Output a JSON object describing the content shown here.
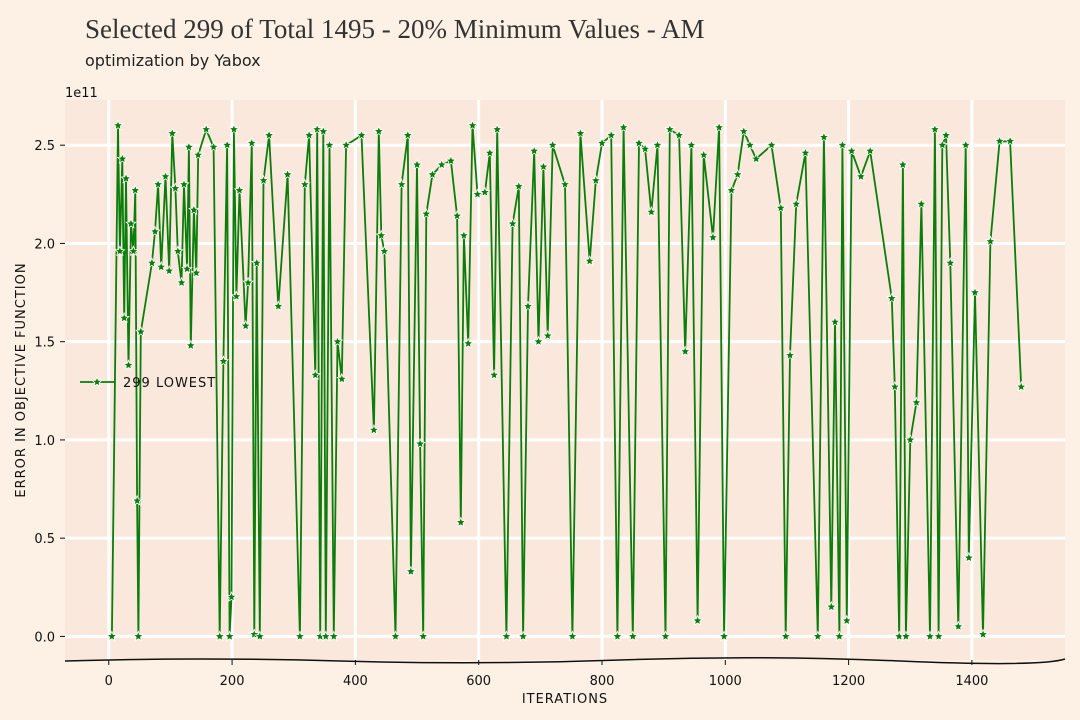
{
  "chart_data": {
    "type": "line",
    "title": "Selected 299 of Total 1495  - 20% Minimum Values - AM",
    "subtitle": "optimization by Yabox",
    "x_label": "ITERATIONS",
    "y_label": "ERROR IN OBJECTIVE FUNCTION",
    "y_offset_label": "1e11",
    "xlim": [
      -71,
      1551
    ],
    "ylim": [
      -0.12,
      2.73
    ],
    "xticks": [
      0,
      200,
      400,
      600,
      800,
      1000,
      1200,
      1400
    ],
    "yticks": [
      {
        "value": 0,
        "label": "0.0"
      },
      0.5,
      {
        "value": 1,
        "label": "1.0"
      },
      1.5,
      {
        "value": 2,
        "label": "2.0"
      },
      2.5
    ],
    "grid": true,
    "legend": "center left",
    "series": [
      {
        "name": "299 LOWEST",
        "color": "#0a7d0a",
        "x": [
          5,
          15,
          18,
          22,
          25,
          28,
          32,
          36,
          40,
          43,
          46,
          48,
          52,
          70,
          75,
          80,
          85,
          92,
          98,
          103,
          108,
          112,
          118,
          122,
          127,
          130,
          133,
          138,
          142,
          145,
          158,
          170,
          180,
          186,
          192,
          196,
          199,
          203,
          207,
          212,
          222,
          226,
          232,
          236,
          240,
          245,
          251,
          260,
          275,
          290,
          310,
          318,
          325,
          335,
          338,
          343,
          348,
          352,
          358,
          365,
          371,
          378,
          385,
          410,
          430,
          438,
          442,
          447,
          465,
          475,
          485,
          490,
          500,
          505,
          510,
          515,
          525,
          540,
          555,
          565,
          571,
          576,
          583,
          590,
          598,
          610,
          618,
          625,
          630,
          645,
          655,
          665,
          672,
          680,
          690,
          697,
          705,
          712,
          720,
          740,
          752,
          765,
          780,
          790,
          800,
          815,
          825,
          835,
          850,
          860,
          870,
          880,
          890,
          903,
          910,
          925,
          935,
          945,
          955,
          965,
          980,
          990,
          998,
          1010,
          1020,
          1030,
          1040,
          1050,
          1075,
          1090,
          1098,
          1105,
          1115,
          1130,
          1150,
          1160,
          1172,
          1178,
          1185,
          1190,
          1197,
          1205,
          1220,
          1235,
          1270,
          1275,
          1282,
          1288,
          1293,
          1300,
          1310,
          1318,
          1332,
          1340,
          1346,
          1352,
          1358,
          1365,
          1378,
          1390,
          1395,
          1405,
          1418,
          1430,
          1445,
          1462,
          1480
        ],
        "values": [
          0,
          2.6,
          1.96,
          2.43,
          1.62,
          2.33,
          1.38,
          2.1,
          1.96,
          2.27,
          0.69,
          0,
          1.55,
          1.9,
          2.06,
          2.3,
          1.88,
          2.34,
          1.86,
          2.56,
          2.28,
          1.96,
          1.8,
          2.3,
          1.87,
          2.49,
          1.48,
          2.17,
          1.85,
          2.45,
          2.58,
          2.49,
          0,
          1.4,
          2.5,
          0,
          0.2,
          2.58,
          1.73,
          2.27,
          1.58,
          1.8,
          2.51,
          0.01,
          1.9,
          0,
          2.32,
          2.55,
          1.68,
          2.35,
          0,
          2.3,
          2.55,
          1.33,
          2.58,
          0,
          2.57,
          0,
          2.5,
          0,
          1.5,
          1.31,
          2.5,
          2.55,
          1.05,
          2.57,
          2.04,
          1.96,
          0,
          2.3,
          2.55,
          0.33,
          2.4,
          0.98,
          0,
          2.15,
          2.35,
          2.4,
          2.42,
          2.14,
          0.58,
          2.04,
          1.49,
          2.6,
          2.25,
          2.26,
          2.46,
          1.33,
          2.58,
          0,
          2.1,
          2.29,
          0,
          1.68,
          2.47,
          1.5,
          2.39,
          1.53,
          2.5,
          2.3,
          0,
          2.56,
          1.91,
          2.32,
          2.51,
          2.55,
          0,
          2.59,
          0,
          2.51,
          2.48,
          2.16,
          2.5,
          0,
          2.58,
          2.55,
          1.45,
          2.5,
          0.08,
          2.45,
          2.03,
          2.59,
          0,
          2.27,
          2.35,
          2.57,
          2.5,
          2.43,
          2.5,
          2.18,
          0,
          1.43,
          2.2,
          2.46,
          0,
          2.54,
          0.15,
          1.6,
          0,
          2.5,
          0.08,
          2.47,
          2.34,
          2.47,
          1.72,
          1.27,
          0,
          2.4,
          0,
          1.0,
          1.19,
          2.2,
          0,
          2.58,
          0,
          2.5,
          2.55,
          1.9,
          0.05,
          2.5,
          0.4,
          1.75,
          0.01,
          2.01,
          2.52,
          2.52,
          1.27
        ]
      }
    ]
  }
}
